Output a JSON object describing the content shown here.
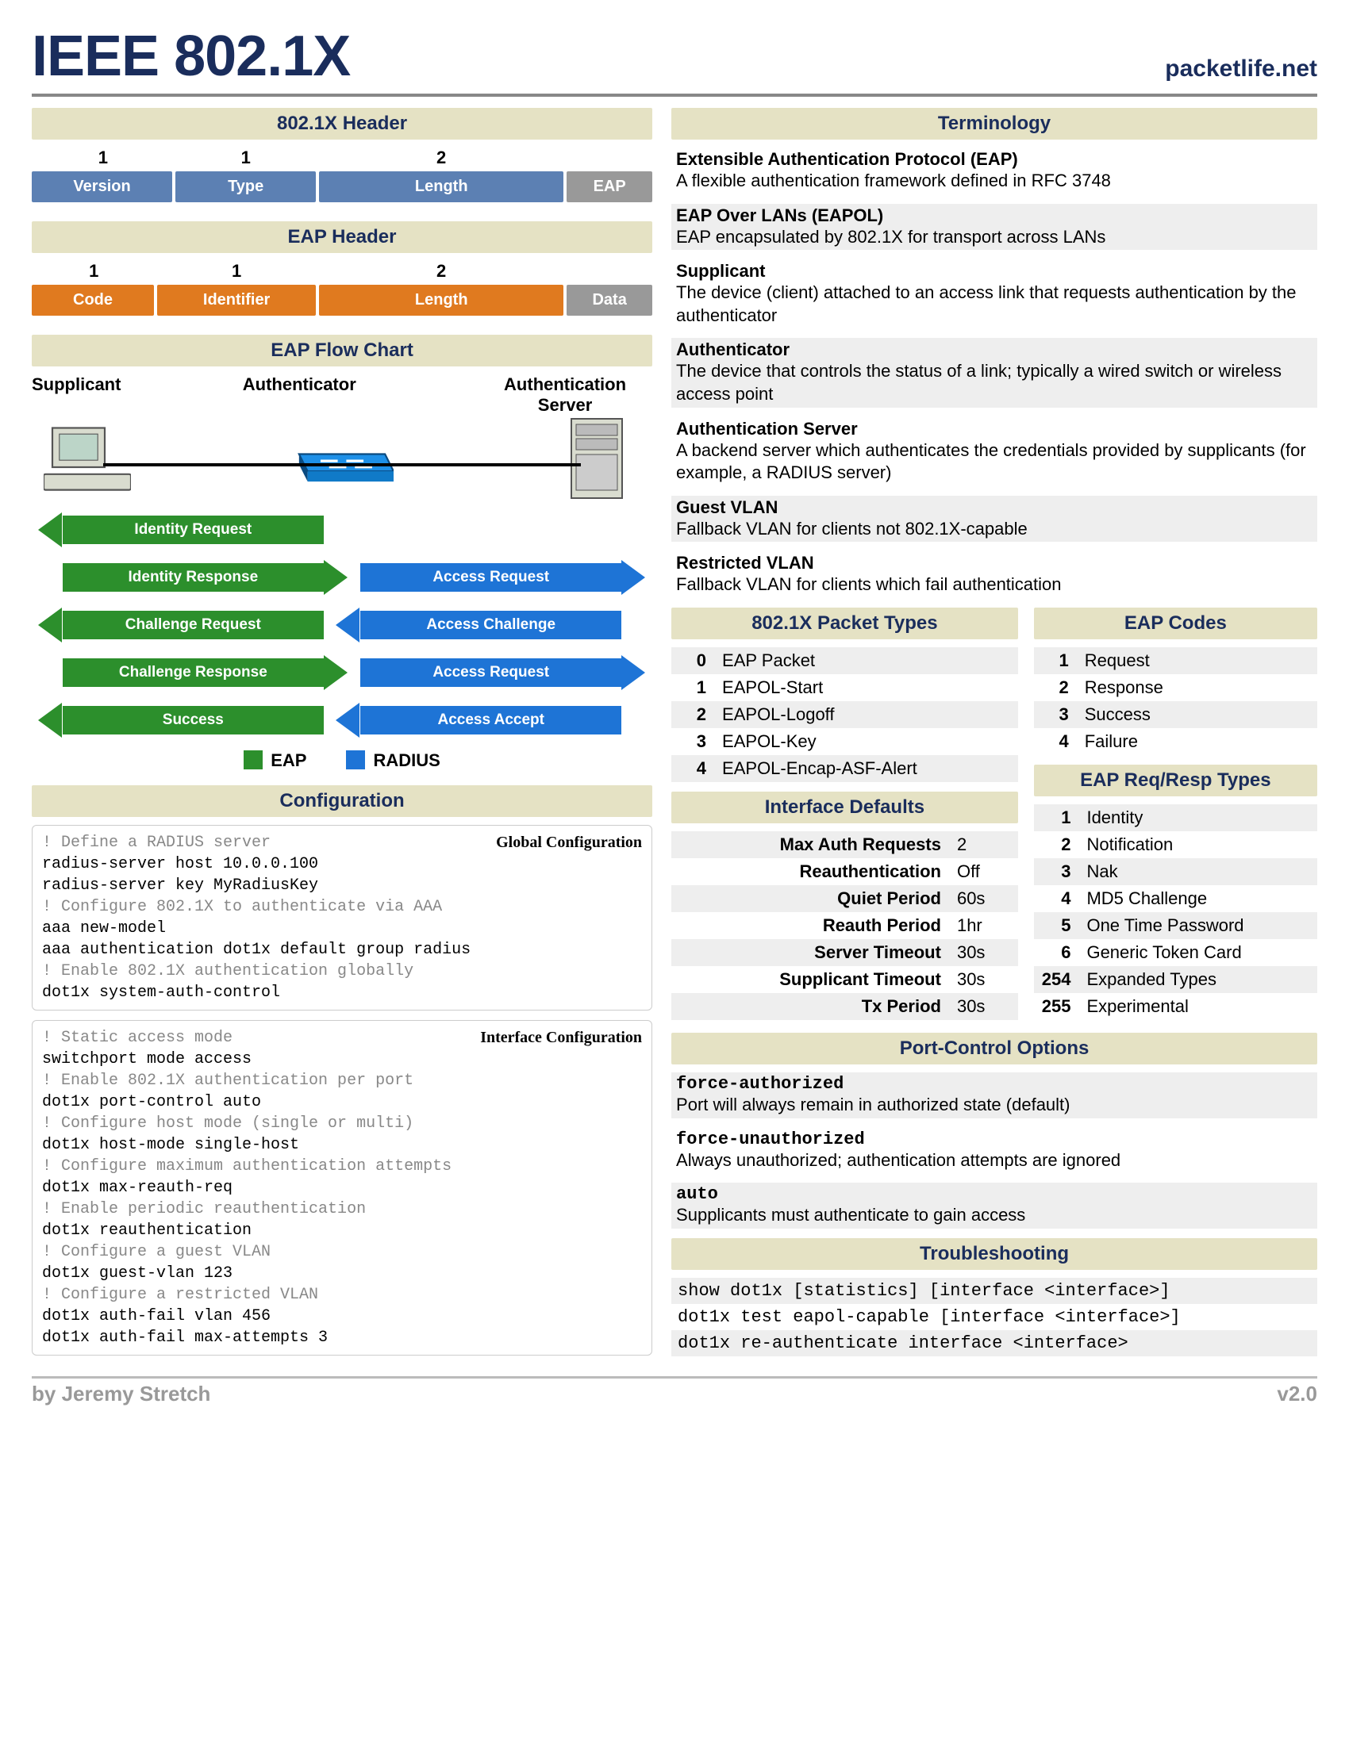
{
  "title": "IEEE 802.1X",
  "site": "packetlife.net",
  "author": "by Jeremy Stretch",
  "version": "v2.0",
  "colors": {
    "band": "#e5e2c4",
    "navy": "#1a2d5c",
    "blue": "#5c80b3",
    "gray": "#999999",
    "orange": "#e07a1f",
    "arrow_green": "#2c8f2c",
    "arrow_blue": "#1e74d6",
    "zebra": "#eeeeee",
    "rule": "#888888"
  },
  "header_8021x": {
    "title": "802.1X  Header",
    "bytes": [
      "1",
      "1",
      "2"
    ],
    "cells": [
      {
        "label": "Version",
        "w": 23,
        "color": "blue"
      },
      {
        "label": "Type",
        "w": 23,
        "color": "blue"
      },
      {
        "label": "Length",
        "w": 40,
        "color": "blue"
      },
      {
        "label": "EAP",
        "w": 14,
        "color": "gray"
      }
    ]
  },
  "header_eap": {
    "title": "EAP  Header",
    "bytes": [
      "1",
      "1",
      "2"
    ],
    "cells": [
      {
        "label": "Code",
        "w": 20,
        "color": "orange"
      },
      {
        "label": "Identifier",
        "w": 26,
        "color": "orange"
      },
      {
        "label": "Length",
        "w": 40,
        "color": "orange"
      },
      {
        "label": "Data",
        "w": 14,
        "color": "gray"
      }
    ]
  },
  "flow": {
    "title": "EAP Flow Chart",
    "roles": [
      "Supplicant",
      "Authenticator",
      "Authentication Server"
    ],
    "arrows": [
      {
        "label": "Identity Request",
        "side": "left",
        "dir": "left",
        "color": "green"
      },
      [
        {
          "label": "Identity Response",
          "side": "left",
          "dir": "right",
          "color": "green"
        },
        {
          "label": "Access Request",
          "side": "right",
          "dir": "right",
          "color": "blue"
        }
      ],
      [
        {
          "label": "Challenge Request",
          "side": "left",
          "dir": "left",
          "color": "green"
        },
        {
          "label": "Access Challenge",
          "side": "right",
          "dir": "left",
          "color": "blue"
        }
      ],
      [
        {
          "label": "Challenge Response",
          "side": "left",
          "dir": "right",
          "color": "green"
        },
        {
          "label": "Access Request",
          "side": "right",
          "dir": "right",
          "color": "blue"
        }
      ],
      [
        {
          "label": "Success",
          "side": "left",
          "dir": "left",
          "color": "green"
        },
        {
          "label": "Access Accept",
          "side": "right",
          "dir": "left",
          "color": "blue"
        }
      ]
    ],
    "legend": [
      {
        "label": "EAP",
        "color": "#2c8f2c"
      },
      {
        "label": "RADIUS",
        "color": "#1e74d6"
      }
    ]
  },
  "configuration": {
    "title": "Configuration",
    "global": {
      "title": "Global Configuration",
      "lines": [
        {
          "t": "! Define a RADIUS server",
          "c": true
        },
        {
          "t": "radius-server host 10.0.0.100"
        },
        {
          "t": "radius-server key MyRadiusKey"
        },
        {
          "t": "! Configure 802.1X to authenticate via AAA",
          "c": true
        },
        {
          "t": "aaa new-model"
        },
        {
          "t": "aaa authentication dot1x default group radius"
        },
        {
          "t": "! Enable 802.1X authentication globally",
          "c": true
        },
        {
          "t": "dot1x system-auth-control"
        }
      ]
    },
    "interface": {
      "title": "Interface Configuration",
      "lines": [
        {
          "t": "! Static access mode",
          "c": true
        },
        {
          "t": "switchport mode access"
        },
        {
          "t": "! Enable 802.1X authentication per port",
          "c": true
        },
        {
          "t": "dot1x port-control auto"
        },
        {
          "t": "! Configure host mode (single or multi)",
          "c": true
        },
        {
          "t": "dot1x host-mode single-host"
        },
        {
          "t": "! Configure maximum authentication attempts",
          "c": true
        },
        {
          "t": "dot1x max-reauth-req"
        },
        {
          "t": "! Enable periodic reauthentication",
          "c": true
        },
        {
          "t": "dot1x reauthentication"
        },
        {
          "t": "! Configure a guest VLAN",
          "c": true
        },
        {
          "t": "dot1x guest-vlan 123"
        },
        {
          "t": "! Configure a restricted VLAN",
          "c": true
        },
        {
          "t": "dot1x auth-fail vlan 456"
        },
        {
          "t": "dot1x auth-fail max-attempts 3"
        }
      ]
    }
  },
  "terminology": {
    "title": "Terminology",
    "items": [
      {
        "term": "Extensible Authentication Protocol (EAP)",
        "desc": "A flexible authentication framework defined in RFC 3748"
      },
      {
        "term": "EAP Over LANs (EAPOL)",
        "desc": "EAP encapsulated by 802.1X for transport across LANs"
      },
      {
        "term": "Supplicant",
        "desc": "The device (client) attached to an access link that requests authentication by the authenticator"
      },
      {
        "term": "Authenticator",
        "desc": "The device that controls the status of a link; typically a wired switch or wireless access point"
      },
      {
        "term": "Authentication Server",
        "desc": "A backend server which authenticates the credentials provided by supplicants (for example, a RADIUS server)"
      },
      {
        "term": "Guest VLAN",
        "desc": "Fallback VLAN for clients not 802.1X-capable"
      },
      {
        "term": "Restricted VLAN",
        "desc": "Fallback VLAN for clients which fail authentication"
      }
    ]
  },
  "packet_types": {
    "title": "802.1X Packet Types",
    "rows": [
      [
        "0",
        "EAP Packet"
      ],
      [
        "1",
        "EAPOL-Start"
      ],
      [
        "2",
        "EAPOL-Logoff"
      ],
      [
        "3",
        "EAPOL-Key"
      ],
      [
        "4",
        "EAPOL-Encap-ASF-Alert"
      ]
    ]
  },
  "eap_codes": {
    "title": "EAP Codes",
    "rows": [
      [
        "1",
        "Request"
      ],
      [
        "2",
        "Response"
      ],
      [
        "3",
        "Success"
      ],
      [
        "4",
        "Failure"
      ]
    ]
  },
  "eap_types": {
    "title": "EAP Req/Resp Types",
    "rows": [
      [
        "1",
        "Identity"
      ],
      [
        "2",
        "Notification"
      ],
      [
        "3",
        "Nak"
      ],
      [
        "4",
        "MD5 Challenge"
      ],
      [
        "5",
        "One Time Password"
      ],
      [
        "6",
        "Generic Token Card"
      ],
      [
        "254",
        "Expanded Types"
      ],
      [
        "255",
        "Experimental"
      ]
    ]
  },
  "defaults": {
    "title": "Interface Defaults",
    "rows": [
      [
        "Max Auth Requests",
        "2"
      ],
      [
        "Reauthentication",
        "Off"
      ],
      [
        "Quiet Period",
        "60s"
      ],
      [
        "Reauth Period",
        "1hr"
      ],
      [
        "Server Timeout",
        "30s"
      ],
      [
        "Supplicant Timeout",
        "30s"
      ],
      [
        "Tx Period",
        "30s"
      ]
    ]
  },
  "port_control": {
    "title": "Port-Control Options",
    "items": [
      {
        "term": "force-authorized",
        "desc": "Port will always remain in authorized state (default)"
      },
      {
        "term": "force-unauthorized",
        "desc": "Always unauthorized; authentication attempts are ignored"
      },
      {
        "term": "auto",
        "desc": "Supplicants must authenticate to gain access"
      }
    ]
  },
  "troubleshooting": {
    "title": "Troubleshooting",
    "cmds": [
      "show dot1x [statistics] [interface <interface>]",
      "dot1x test eapol-capable [interface <interface>]",
      "dot1x re-authenticate interface <interface>"
    ]
  }
}
